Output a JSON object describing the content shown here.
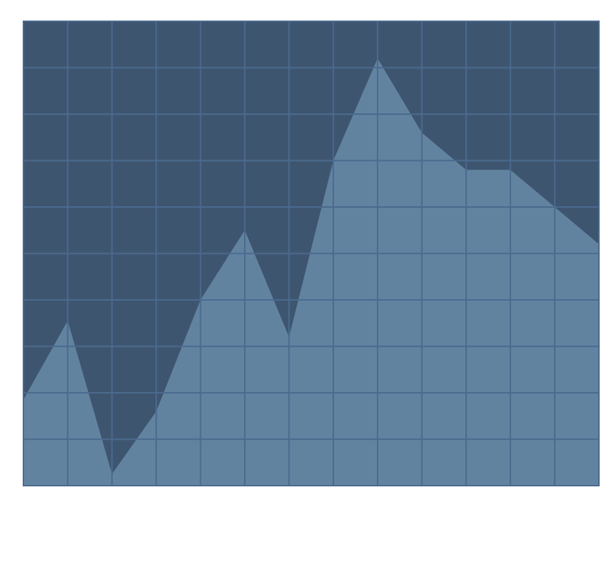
{
  "chart_data": {
    "type": "area",
    "title": "",
    "xlabel": "",
    "ylabel": "",
    "x": [
      0,
      1,
      2,
      3,
      4,
      5,
      6,
      7,
      8,
      9,
      10,
      11,
      12,
      13
    ],
    "values": [
      18.5,
      35.5,
      2.5,
      16.0,
      40.0,
      55.0,
      32.0,
      70.0,
      92.0,
      76.0,
      68.0,
      68.0,
      60.0,
      52.0
    ],
    "xlim": [
      0,
      13
    ],
    "ylim": [
      0,
      100
    ],
    "x_grid_count": 13,
    "y_grid_count": 10,
    "grid": true,
    "legend": "none",
    "colors": {
      "background": "#3e5570",
      "area_fill": "#6283a0",
      "grid": "#4a6a8e"
    }
  }
}
